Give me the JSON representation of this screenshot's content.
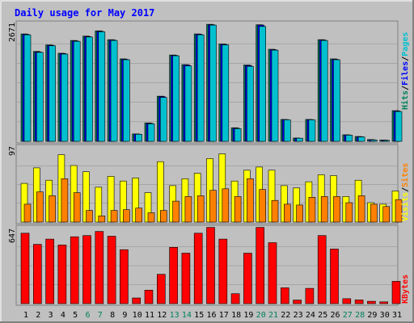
{
  "title": "Daily usage for May 2017",
  "colors": {
    "frame": "#c0c0c0",
    "plot_bg": "#c0c0c0",
    "title": "#0000ff",
    "hits": "#00805c",
    "files": "#0000ff",
    "pages": "#00c0d0",
    "visits": "#ffff00",
    "sites": "#ff8000",
    "kbytes": "#ff0000",
    "weekend_label": "#00805c",
    "weekday_label": "#000000",
    "grid": "#808080"
  },
  "legend": {
    "top": [
      {
        "text": "Hits",
        "color": "#00805c"
      },
      {
        "text": "/",
        "color": "#000000"
      },
      {
        "text": "Files",
        "color": "#0000ff"
      },
      {
        "text": "/",
        "color": "#000000"
      },
      {
        "text": "Pages",
        "color": "#00c0d0"
      }
    ],
    "mid": [
      {
        "text": "Visits",
        "color": "#ffff00"
      },
      {
        "text": "/",
        "color": "#000000"
      },
      {
        "text": "Sites",
        "color": "#ff8000"
      }
    ],
    "bottom": [
      {
        "text": "KBytes",
        "color": "#ff0000"
      }
    ]
  },
  "chart_data": [
    {
      "type": "bar",
      "panel": "top",
      "y_max_label": "2671",
      "ylim": [
        0,
        2671
      ],
      "categories": [
        "1",
        "2",
        "3",
        "4",
        "5",
        "6",
        "7",
        "8",
        "9",
        "10",
        "11",
        "12",
        "13",
        "14",
        "15",
        "16",
        "17",
        "18",
        "19",
        "20",
        "21",
        "22",
        "23",
        "24",
        "25",
        "26",
        "27",
        "28",
        "29",
        "30",
        "31"
      ],
      "weekend_days": [
        6,
        7,
        13,
        14,
        20,
        21,
        27,
        28
      ],
      "series": [
        {
          "name": "Hits",
          "values": [
            2450,
            2050,
            2200,
            2010,
            2300,
            2400,
            2520,
            2320,
            1880,
            170,
            420,
            1030,
            1970,
            1750,
            2450,
            2670,
            2220,
            310,
            1740,
            2660,
            2100,
            500,
            75,
            500,
            2320,
            1880,
            150,
            110,
            40,
            30,
            700
          ]
        },
        {
          "name": "Files",
          "values": [
            2440,
            2040,
            2190,
            2000,
            2290,
            2390,
            2510,
            2310,
            1870,
            165,
            410,
            1020,
            1960,
            1740,
            2440,
            2660,
            2210,
            300,
            1730,
            2650,
            2090,
            495,
            70,
            495,
            2310,
            1870,
            145,
            105,
            35,
            25,
            690
          ]
        },
        {
          "name": "Pages",
          "values": [
            2430,
            2030,
            2180,
            1990,
            2280,
            2380,
            2500,
            2300,
            1860,
            160,
            400,
            1000,
            1950,
            1720,
            2430,
            2650,
            2200,
            290,
            1710,
            2620,
            2080,
            490,
            70,
            490,
            2300,
            1860,
            140,
            100,
            30,
            20,
            680
          ]
        }
      ]
    },
    {
      "type": "bar",
      "panel": "middle",
      "y_max_label": "97",
      "ylim": [
        0,
        97
      ],
      "categories": [
        "1",
        "2",
        "3",
        "4",
        "5",
        "6",
        "7",
        "8",
        "9",
        "10",
        "11",
        "12",
        "13",
        "14",
        "15",
        "16",
        "17",
        "18",
        "19",
        "20",
        "21",
        "22",
        "23",
        "24",
        "25",
        "26",
        "27",
        "28",
        "29",
        "30",
        "31"
      ],
      "series": [
        {
          "name": "Visits",
          "values": [
            50,
            70,
            54,
            87,
            73,
            65,
            45,
            59,
            53,
            57,
            38,
            78,
            47,
            56,
            63,
            82,
            88,
            53,
            67,
            71,
            67,
            47,
            44,
            52,
            61,
            60,
            33,
            54,
            25,
            23,
            40
          ]
        },
        {
          "name": "Sites",
          "values": [
            23,
            39,
            34,
            56,
            38,
            15,
            8,
            15,
            16,
            18,
            12,
            15,
            27,
            33,
            34,
            41,
            43,
            33,
            56,
            42,
            28,
            23,
            22,
            32,
            33,
            33,
            25,
            34,
            23,
            20,
            29
          ]
        }
      ]
    },
    {
      "type": "bar",
      "panel": "bottom",
      "y_max_label": "647",
      "ylim": [
        0,
        647
      ],
      "categories": [
        "1",
        "2",
        "3",
        "4",
        "5",
        "6",
        "7",
        "8",
        "9",
        "10",
        "11",
        "12",
        "13",
        "14",
        "15",
        "16",
        "17",
        "18",
        "19",
        "20",
        "21",
        "22",
        "23",
        "24",
        "25",
        "26",
        "27",
        "28",
        "29",
        "30",
        "31"
      ],
      "series": [
        {
          "name": "KBytes",
          "values": [
            600,
            505,
            550,
            500,
            570,
            580,
            615,
            575,
            460,
            48,
            115,
            250,
            480,
            430,
            600,
            650,
            550,
            85,
            430,
            650,
            520,
            135,
            30,
            130,
            580,
            465,
            42,
            32,
            20,
            15,
            190
          ]
        }
      ]
    }
  ]
}
